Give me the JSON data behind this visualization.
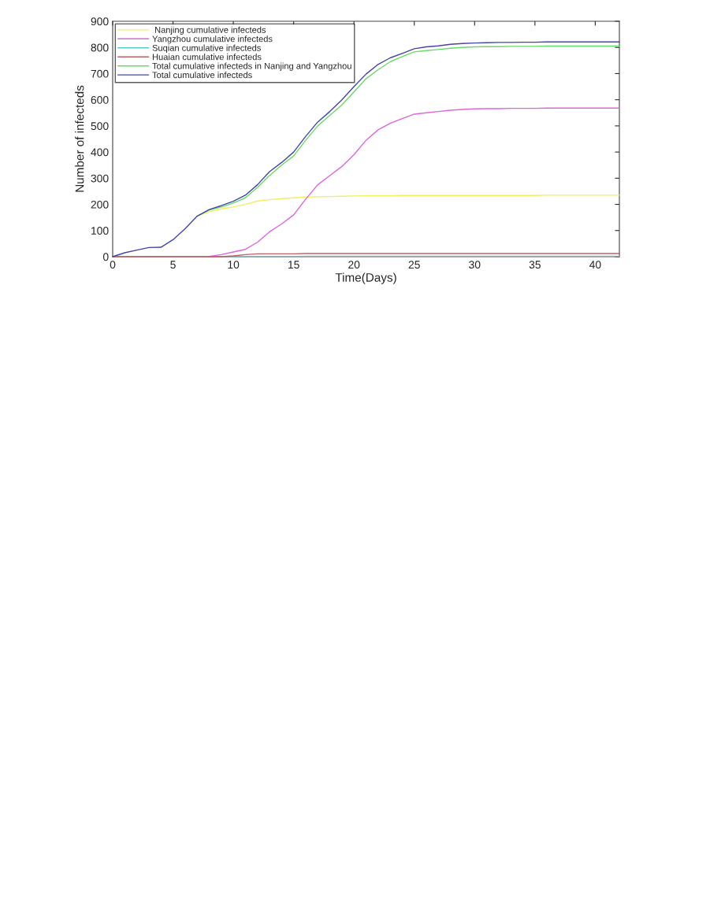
{
  "chart_data": {
    "type": "line",
    "xlabel": "Time(Days)",
    "ylabel": "Number of infecteds",
    "x": [
      0,
      1,
      2,
      3,
      4,
      5,
      6,
      7,
      8,
      9,
      10,
      11,
      12,
      13,
      14,
      15,
      16,
      17,
      18,
      19,
      20,
      21,
      22,
      23,
      24,
      25,
      26,
      27,
      28,
      29,
      30,
      31,
      32,
      33,
      34,
      35,
      36,
      37,
      38,
      39,
      40,
      41,
      42
    ],
    "series": [
      {
        "name": " Nanjing cumulative infecteds",
        "color": "#f0f060",
        "values": [
          null,
          null,
          null,
          null,
          null,
          null,
          null,
          155,
          172,
          183,
          190,
          200,
          213,
          218,
          222,
          225,
          228,
          229,
          230,
          231,
          232,
          233,
          233,
          233,
          234,
          234,
          234,
          234,
          234,
          234,
          234,
          234,
          234,
          234,
          234,
          234,
          235,
          235,
          235,
          235,
          235,
          235,
          235
        ]
      },
      {
        "name": "Yangzhou cumulative infecteds",
        "color": "#dd66dd",
        "values": [
          null,
          null,
          null,
          null,
          null,
          null,
          null,
          null,
          1,
          8,
          18,
          28,
          55,
          95,
          125,
          160,
          220,
          275,
          310,
          345,
          390,
          445,
          485,
          510,
          528,
          545,
          550,
          555,
          560,
          563,
          565,
          566,
          566,
          567,
          567,
          567,
          568,
          568,
          568,
          568,
          568,
          568,
          568
        ]
      },
      {
        "name": "Suqian cumulative infecteds",
        "color": "#55cccc",
        "values": [
          null,
          null,
          null,
          null,
          null,
          null,
          null,
          null,
          null,
          null,
          0,
          1,
          1,
          1,
          1,
          1,
          2,
          2,
          2,
          2,
          2,
          2,
          2,
          2,
          2,
          2,
          2,
          2,
          2,
          2,
          2,
          2,
          2,
          2,
          2,
          2,
          2,
          2,
          2,
          2,
          2,
          2,
          2
        ]
      },
      {
        "name": "Huaian cumulative infecteds",
        "color": "#c06060",
        "values": [
          0,
          0,
          0,
          0,
          0,
          0,
          0,
          0,
          0,
          0,
          3,
          8,
          11,
          11,
          11,
          11,
          12,
          12,
          12,
          12,
          12,
          12,
          12,
          12,
          12,
          12,
          12,
          12,
          12,
          12,
          12,
          12,
          12,
          12,
          12,
          12,
          12,
          12,
          12,
          12,
          12,
          12,
          12
        ]
      },
      {
        "name": "Total cumulative infecteds in Nanjing and Yangzhou",
        "color": "#66dd66",
        "values": [
          null,
          null,
          null,
          null,
          null,
          null,
          null,
          155,
          178,
          190,
          205,
          225,
          265,
          310,
          350,
          385,
          445,
          500,
          540,
          580,
          630,
          680,
          715,
          745,
          765,
          783,
          788,
          792,
          797,
          800,
          802,
          803,
          803,
          804,
          804,
          804,
          805,
          805,
          805,
          805,
          805,
          805,
          805
        ]
      },
      {
        "name": "Total cumulative infecteds",
        "color": "#4444aa",
        "values": [
          0,
          15,
          25,
          35,
          36,
          65,
          107,
          155,
          180,
          195,
          212,
          235,
          275,
          325,
          360,
          400,
          460,
          515,
          555,
          600,
          650,
          698,
          735,
          760,
          777,
          795,
          802,
          806,
          812,
          815,
          817,
          818,
          819,
          819,
          820,
          820,
          821,
          821,
          821,
          821,
          821,
          821,
          821
        ]
      }
    ],
    "xlim": [
      0,
      42
    ],
    "xticks": [
      0,
      5,
      10,
      15,
      20,
      25,
      30,
      35,
      40
    ],
    "ylim": [
      0,
      900
    ],
    "yticks": [
      0,
      100,
      200,
      300,
      400,
      500,
      600,
      700,
      800,
      900
    ],
    "grid": false,
    "legend": "top left",
    "line_style": "solid",
    "marker": "none"
  }
}
